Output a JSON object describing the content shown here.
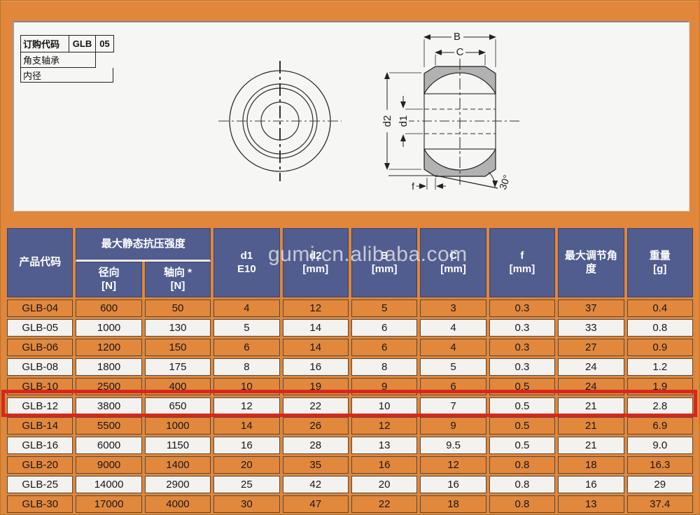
{
  "order_code": {
    "field_label": "订购代码",
    "code_prefix": "GLB",
    "code_size": "05",
    "line2_label": "角支轴承",
    "line3_label": "内径"
  },
  "watermark": "gumi.cn.alibaba.com",
  "diagram": {
    "dim_B": "B",
    "dim_C": "C",
    "dim_d2": "d2",
    "dim_d1": "d1",
    "dim_f": "f",
    "dim_angle": "30°"
  },
  "table": {
    "header": {
      "product_code": "产品代码",
      "strength_group": "最大静态抗压强度",
      "radial_label": "径向",
      "radial_unit": "[N]",
      "axial_label": "轴向 *",
      "axial_unit": "[N]",
      "d1_label": "d1",
      "d1_unit": "E10",
      "d2_label": "d2",
      "d2_unit": "[mm]",
      "B_label": "B",
      "B_unit": "[mm]",
      "C_label": "C",
      "C_unit": "[mm]",
      "f_label": "f",
      "f_unit": "[mm]",
      "angle_label": "最大调节角度",
      "weight_label": "重量",
      "weight_unit": "[g]"
    },
    "rows": [
      [
        "GLB-04",
        "600",
        "50",
        "4",
        "12",
        "5",
        "3",
        "0.3",
        "37",
        "0.4"
      ],
      [
        "GLB-05",
        "1000",
        "130",
        "5",
        "14",
        "6",
        "4",
        "0.3",
        "33",
        "0.8"
      ],
      [
        "GLB-06",
        "1200",
        "150",
        "6",
        "14",
        "6",
        "4",
        "0.3",
        "27",
        "0.9"
      ],
      [
        "GLB-08",
        "1800",
        "175",
        "8",
        "16",
        "8",
        "5",
        "0.3",
        "24",
        "1.2"
      ],
      [
        "GLB-10",
        "2500",
        "400",
        "10",
        "19",
        "9",
        "6",
        "0.5",
        "24",
        "1.9"
      ],
      [
        "GLB-12",
        "3800",
        "650",
        "12",
        "22",
        "10",
        "7",
        "0.5",
        "21",
        "2.8"
      ],
      [
        "GLB-14",
        "5500",
        "1000",
        "14",
        "26",
        "12",
        "9",
        "0.5",
        "21",
        "6.9"
      ],
      [
        "GLB-16",
        "6000",
        "1150",
        "16",
        "28",
        "13",
        "9.5",
        "0.5",
        "21",
        "9.0"
      ],
      [
        "GLB-20",
        "9000",
        "1400",
        "20",
        "35",
        "16",
        "12",
        "0.8",
        "18",
        "16.3"
      ],
      [
        "GLB-25",
        "14000",
        "2900",
        "25",
        "42",
        "20",
        "16",
        "0.8",
        "16",
        "29"
      ],
      [
        "GLB-30",
        "17000",
        "4000",
        "30",
        "47",
        "22",
        "18",
        "0.8",
        "13",
        "37.4"
      ]
    ],
    "highlighted_row": "GLB-12"
  },
  "colors": {
    "frame_orange": "#e0873c",
    "header_blue": "#515d8f",
    "row_orange": "#e2883c",
    "row_light": "#f3f2ef",
    "highlight_red": "#d9271b"
  }
}
